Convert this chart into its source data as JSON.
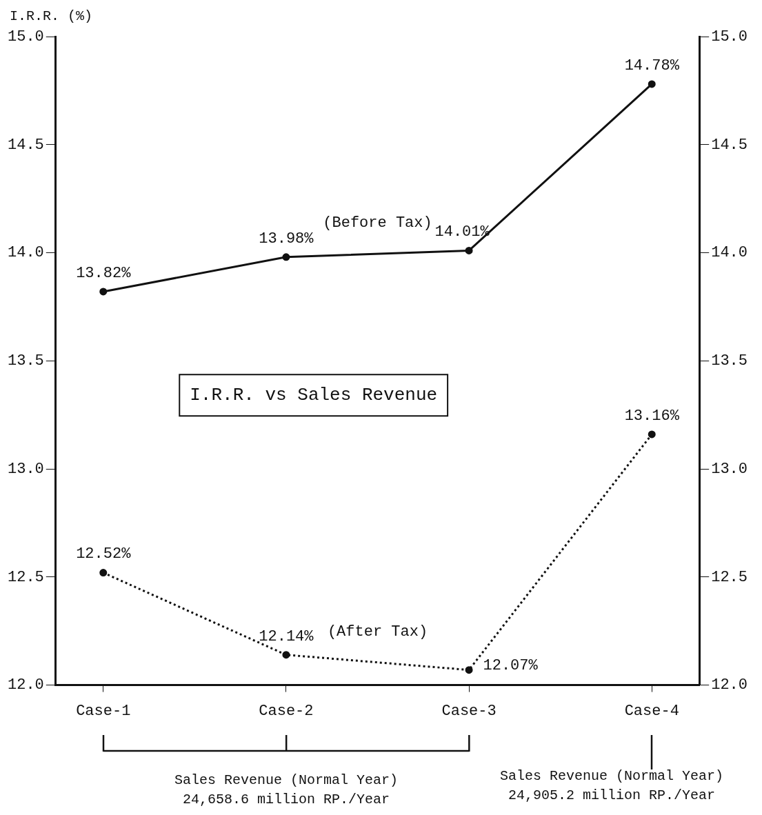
{
  "chart_data": {
    "type": "line",
    "title": "I.R.R. vs Sales Revenue",
    "ylabel": "I.R.R. (%)",
    "categories": [
      "Case-1",
      "Case-2",
      "Case-3",
      "Case-4"
    ],
    "series": [
      {
        "name": "(Before Tax)",
        "color": "#111111",
        "values": [
          13.82,
          13.98,
          14.01,
          14.78
        ],
        "line_style": "solid",
        "value_labels": [
          "13.82%",
          "13.98%",
          "14.01%",
          "14.78%"
        ]
      },
      {
        "name": "(After Tax)",
        "color": "#111111",
        "values": [
          12.52,
          12.14,
          12.07,
          13.16
        ],
        "line_style": "dotted",
        "value_labels": [
          "12.52%",
          "12.14%",
          "12.07%",
          "13.16%"
        ]
      }
    ],
    "ylim": [
      12.0,
      15.0
    ],
    "yticks": [
      "12.0",
      "12.5",
      "13.0",
      "13.5",
      "14.0",
      "14.5",
      "15.0"
    ],
    "marker": "circle",
    "grid": false,
    "legend": false,
    "annotations": [
      "Sales Revenue (Normal Year)\n24,658.6 million RP./Year",
      "Sales Revenue (Normal Year)\n24,905.2 million RP./Year"
    ]
  }
}
